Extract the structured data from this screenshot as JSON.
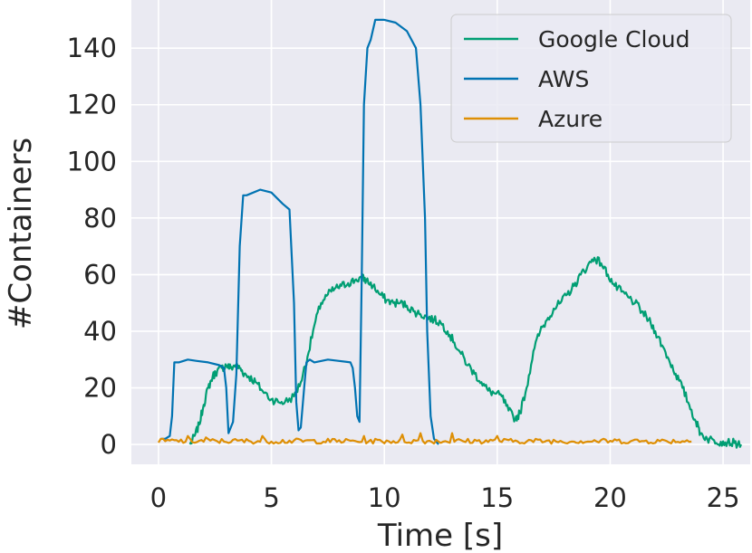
{
  "chart_data": {
    "type": "line",
    "title": "",
    "xlabel": "Time [s]",
    "ylabel": "#Containers",
    "xlim": [
      -1.2,
      26.2
    ],
    "ylim": [
      -7,
      157
    ],
    "xticks": [
      0,
      5,
      10,
      15,
      20,
      25
    ],
    "yticks": [
      0,
      20,
      40,
      60,
      80,
      100,
      120,
      140
    ],
    "grid": true,
    "background": "#eaeaf2",
    "legend": {
      "position": "top-right"
    },
    "series": [
      {
        "name": "Google Cloud",
        "color": "#009e73",
        "x": [
          1.4,
          1.6,
          1.8,
          2.0,
          2.2,
          2.4,
          2.6,
          2.8,
          3.0,
          3.2,
          3.4,
          3.6,
          3.8,
          4.0,
          4.3,
          4.6,
          5.0,
          5.3,
          5.6,
          6.0,
          6.3,
          6.6,
          6.9,
          7.2,
          7.5,
          7.8,
          8.1,
          8.4,
          8.7,
          9.0,
          9.2,
          9.5,
          9.8,
          10.1,
          10.4,
          10.7,
          11.0,
          11.3,
          11.6,
          11.9,
          12.2,
          12.5,
          12.8,
          13.1,
          13.4,
          13.7,
          14.0,
          14.3,
          14.6,
          14.9,
          15.2,
          15.5,
          15.8,
          16.0,
          16.3,
          16.6,
          16.9,
          17.2,
          17.5,
          17.8,
          18.1,
          18.4,
          18.7,
          19.0,
          19.3,
          19.6,
          19.9,
          20.2,
          20.5,
          20.8,
          21.1,
          21.4,
          21.7,
          22.0,
          22.3,
          22.6,
          22.9,
          23.2,
          23.5,
          23.8,
          24.0,
          24.3,
          24.6,
          24.9,
          25.2,
          25.5,
          25.8
        ],
        "values": [
          0,
          3,
          7,
          14,
          20,
          24,
          26,
          27,
          28,
          27,
          28,
          27,
          25,
          24,
          22,
          19,
          16,
          15,
          15,
          17,
          22,
          31,
          42,
          50,
          53,
          55,
          56,
          57,
          58,
          59,
          58,
          56,
          53,
          51,
          50,
          50,
          49,
          47,
          46,
          45,
          44,
          43,
          40,
          36,
          32,
          28,
          25,
          22,
          19,
          18,
          17,
          12,
          9,
          11,
          20,
          33,
          40,
          44,
          48,
          50,
          53,
          56,
          60,
          63,
          66,
          64,
          60,
          56,
          54,
          52,
          50,
          47,
          44,
          40,
          35,
          30,
          25,
          20,
          14,
          8,
          4,
          2,
          1.5,
          1,
          0.8,
          0.5,
          0
        ],
        "jitter": 1.5
      },
      {
        "name": "AWS",
        "color": "#0173b2",
        "x": [
          0.1,
          0.3,
          0.5,
          0.6,
          0.7,
          0.9,
          1.3,
          1.7,
          2.2,
          2.7,
          2.9,
          3.0,
          3.1,
          3.3,
          3.45,
          3.6,
          3.75,
          3.9,
          4.5,
          5.0,
          5.5,
          5.8,
          6.0,
          6.1,
          6.2,
          6.3,
          6.45,
          6.55,
          6.7,
          6.9,
          7.5,
          8.0,
          8.5,
          8.6,
          8.7,
          8.8,
          8.9,
          9.0,
          9.1,
          9.25,
          9.4,
          9.6,
          10.0,
          10.5,
          11.0,
          11.4,
          11.6,
          11.8,
          11.9,
          12.05,
          12.2,
          12.4
        ],
        "values": [
          2,
          2,
          3,
          10,
          29,
          29,
          30,
          29.5,
          29,
          28,
          27,
          20,
          4,
          8,
          25,
          70,
          88,
          88,
          90,
          89,
          85,
          83,
          50,
          15,
          5,
          6,
          20,
          29,
          30,
          29,
          30,
          29.5,
          29,
          27,
          20,
          10,
          8,
          60,
          120,
          140,
          143,
          150,
          150,
          149,
          146,
          140,
          120,
          80,
          40,
          10,
          2,
          0
        ],
        "jitter": 0
      },
      {
        "name": "Azure",
        "color": "#de8f05",
        "x_start": 0.0,
        "x_end": 23.6,
        "step": 0.1,
        "level": 1.2,
        "noise": 1.5,
        "spikes": [
          [
            1.3,
            3
          ],
          [
            2.1,
            2.5
          ],
          [
            4.6,
            3
          ],
          [
            9.1,
            3
          ],
          [
            10.8,
            3.5
          ],
          [
            11.6,
            4
          ],
          [
            13.0,
            4
          ],
          [
            15.0,
            3
          ]
        ]
      }
    ]
  }
}
